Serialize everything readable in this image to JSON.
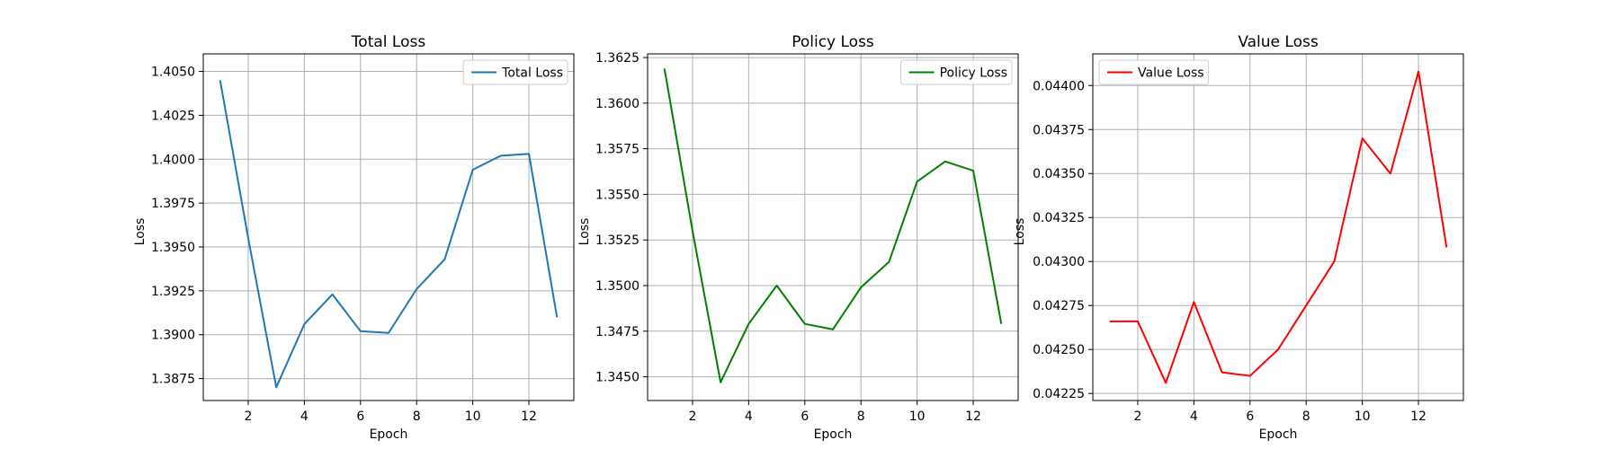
{
  "chart_data": [
    {
      "type": "line",
      "title": "Total Loss",
      "xlabel": "Epoch",
      "ylabel": "Loss",
      "x": [
        1,
        2,
        3,
        4,
        5,
        6,
        7,
        8,
        9,
        10,
        11,
        12,
        13
      ],
      "series": [
        {
          "name": "Total Loss",
          "color": "#1f77b4",
          "values": [
            1.4045,
            1.3955,
            1.387,
            1.3906,
            1.3923,
            1.3902,
            1.3901,
            1.3926,
            1.3943,
            1.3994,
            1.4002,
            1.4003,
            1.391
          ]
        }
      ],
      "xlim": [
        0.4,
        13.6
      ],
      "ylim": [
        1.38625,
        1.406
      ],
      "xticks": [
        2,
        4,
        6,
        8,
        10,
        12
      ],
      "yticks": [
        1.3875,
        1.39,
        1.3925,
        1.395,
        1.3975,
        1.4,
        1.4025,
        1.405
      ],
      "ytick_labels": [
        "1.3875",
        "1.3900",
        "1.3925",
        "1.3950",
        "1.3975",
        "1.4000",
        "1.4025",
        "1.4050"
      ],
      "grid": true,
      "legend": "upper right"
    },
    {
      "type": "line",
      "title": "Policy Loss",
      "xlabel": "Epoch",
      "ylabel": "Loss",
      "x": [
        1,
        2,
        3,
        4,
        5,
        6,
        7,
        8,
        9,
        10,
        11,
        12,
        13
      ],
      "series": [
        {
          "name": "Policy Loss",
          "color": "#008000",
          "values": [
            1.3619,
            1.353,
            1.3447,
            1.3479,
            1.35,
            1.3479,
            1.3476,
            1.3499,
            1.3513,
            1.3557,
            1.3568,
            1.3563,
            1.3479
          ]
        }
      ],
      "xlim": [
        0.4,
        13.6
      ],
      "ylim": [
        1.3437,
        1.3627
      ],
      "xticks": [
        2,
        4,
        6,
        8,
        10,
        12
      ],
      "yticks": [
        1.345,
        1.3475,
        1.35,
        1.3525,
        1.355,
        1.3575,
        1.36,
        1.3625
      ],
      "ytick_labels": [
        "1.3450",
        "1.3475",
        "1.3500",
        "1.3525",
        "1.3550",
        "1.3575",
        "1.3600",
        "1.3625"
      ],
      "grid": true,
      "legend": "upper right"
    },
    {
      "type": "line",
      "title": "Value Loss",
      "xlabel": "Epoch",
      "ylabel": "Loss",
      "x": [
        1,
        2,
        3,
        4,
        5,
        6,
        7,
        8,
        9,
        10,
        11,
        12,
        13
      ],
      "series": [
        {
          "name": "Value Loss",
          "color": "#ff0000",
          "values": [
            0.04266,
            0.04266,
            0.04231,
            0.04277,
            0.04237,
            0.04235,
            0.0425,
            0.04275,
            0.043,
            0.0437,
            0.0435,
            0.04408,
            0.04308
          ]
        }
      ],
      "xlim": [
        0.4,
        13.6
      ],
      "ylim": [
        0.04221,
        0.04418
      ],
      "xticks": [
        2,
        4,
        6,
        8,
        10,
        12
      ],
      "yticks": [
        0.04225,
        0.0425,
        0.04275,
        0.043,
        0.04325,
        0.0435,
        0.04375,
        0.044
      ],
      "ytick_labels": [
        "0.04225",
        "0.04250",
        "0.04275",
        "0.04300",
        "0.04325",
        "0.04350",
        "0.04375",
        "0.04400"
      ],
      "grid": true,
      "legend": "upper left"
    }
  ]
}
